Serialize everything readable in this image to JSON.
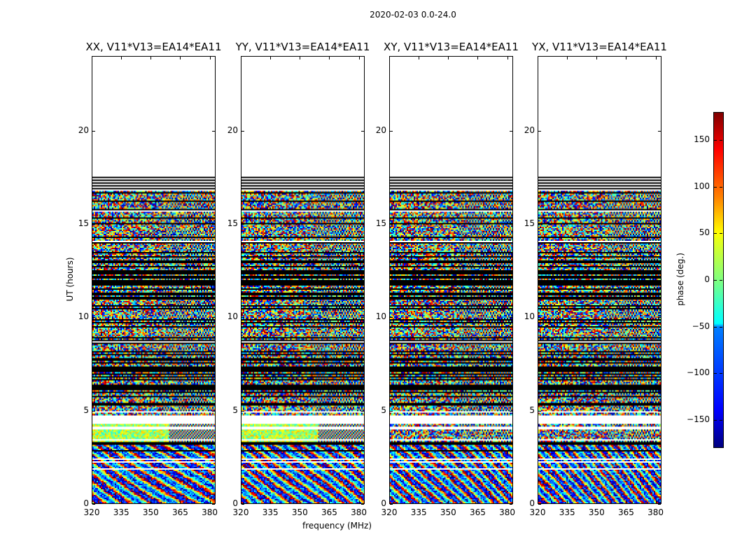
{
  "chart_data": {
    "type": "heatmap",
    "suptitle": "2020-02-03 0.0-24.0",
    "panels": [
      {
        "title": "XX, V11*V13=EA14*EA11"
      },
      {
        "title": "YY, V11*V13=EA14*EA11"
      },
      {
        "title": "XY, V11*V13=EA14*EA11"
      },
      {
        "title": "YX, V11*V13=EA14*EA11"
      }
    ],
    "xlabel": "frequency (MHz)",
    "ylabel": "UT (hours)",
    "xlim": [
      320,
      383
    ],
    "ylim": [
      0,
      24
    ],
    "xticks": [
      "320",
      "335",
      "350",
      "365",
      "380"
    ],
    "yticks": [
      "0",
      "5",
      "10",
      "15",
      "20"
    ],
    "data_extent_hours": [
      0,
      17.6
    ],
    "colorbar": {
      "label": "phase (deg.)",
      "range": [
        -180,
        180
      ],
      "ticks": [
        "150",
        "100",
        "50",
        "0",
        "−50",
        "−100",
        "−150"
      ],
      "colormap": "jet"
    }
  }
}
